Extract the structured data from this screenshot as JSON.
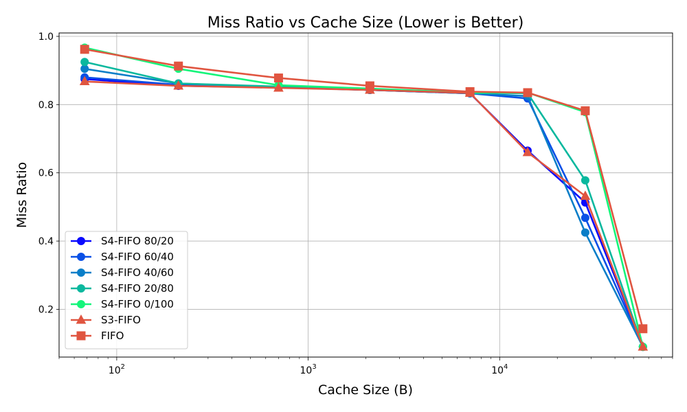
{
  "chart_data": {
    "type": "line",
    "title": "Miss Ratio vs Cache Size (Lower is Better)",
    "xlabel": "Cache Size (B)",
    "ylabel": "Miss Ratio",
    "xscale": "log",
    "xlim": [
      50,
      80000
    ],
    "ylim": [
      0.06,
      1.01
    ],
    "grid": true,
    "legend_position": "lower-left",
    "x_ticks": [
      {
        "value": 100,
        "base": "10",
        "exp": "2"
      },
      {
        "value": 1000,
        "base": "10",
        "exp": "3"
      },
      {
        "value": 10000,
        "base": "10",
        "exp": "4"
      }
    ],
    "y_ticks": [
      {
        "value": 0.2,
        "label": "0.2"
      },
      {
        "value": 0.4,
        "label": "0.4"
      },
      {
        "value": 0.6,
        "label": "0.6"
      },
      {
        "value": 0.8,
        "label": "0.8"
      },
      {
        "value": 1.0,
        "label": "1.0"
      }
    ],
    "x": [
      68,
      210,
      700,
      2100,
      7000,
      14000,
      28000,
      56000
    ],
    "series": [
      {
        "name": "S4-FIFO 80/20",
        "color": "#0a0aff",
        "marker": "circle",
        "values": [
          0.875,
          0.855,
          0.85,
          0.843,
          0.833,
          0.665,
          0.513,
          0.09
        ]
      },
      {
        "name": "S4-FIFO 60/40",
        "color": "#0a50e6",
        "marker": "circle",
        "values": [
          0.88,
          0.858,
          0.851,
          0.843,
          0.833,
          0.818,
          0.468,
          0.09
        ]
      },
      {
        "name": "S4-FIFO 40/60",
        "color": "#0a7ec8",
        "marker": "circle",
        "values": [
          0.905,
          0.862,
          0.851,
          0.843,
          0.833,
          0.825,
          0.425,
          0.09
        ]
      },
      {
        "name": "S4-FIFO 20/80",
        "color": "#0ab89e",
        "marker": "circle",
        "values": [
          0.925,
          0.862,
          0.853,
          0.845,
          0.835,
          0.833,
          0.578,
          0.09
        ]
      },
      {
        "name": "S4-FIFO 0/100",
        "color": "#14f57a",
        "marker": "circle",
        "values": [
          0.967,
          0.905,
          0.857,
          0.847,
          0.835,
          0.835,
          0.778,
          0.09
        ]
      },
      {
        "name": "S3-FIFO",
        "color": "#e05540",
        "marker": "triangle",
        "values": [
          0.868,
          0.855,
          0.849,
          0.843,
          0.834,
          0.66,
          0.532,
          0.09
        ]
      },
      {
        "name": "FIFO",
        "color": "#e05540",
        "marker": "square",
        "values": [
          0.962,
          0.913,
          0.878,
          0.855,
          0.838,
          0.835,
          0.782,
          0.143
        ]
      }
    ]
  }
}
